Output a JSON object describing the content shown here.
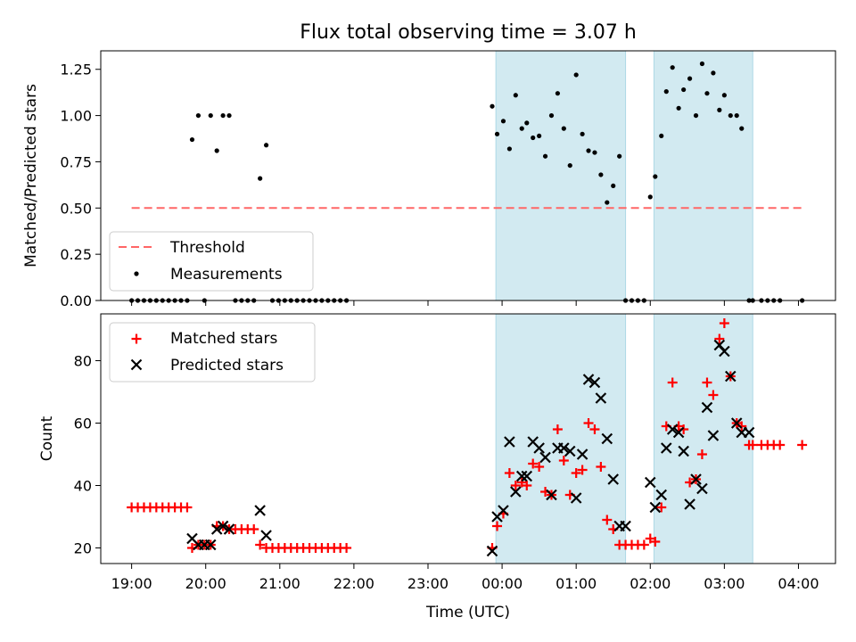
{
  "title": "Flux total observing time = 3.07 h",
  "chart_data": [
    {
      "type": "scatter",
      "title": "Flux total observing time = 3.07 h",
      "xlabel": "",
      "ylabel": "Matched/Predicted stars",
      "xlim": [
        "18:35",
        "04:30"
      ],
      "ylim": [
        0,
        1.35
      ],
      "yticks": [
        "0.00",
        "0.25",
        "0.50",
        "0.75",
        "1.00",
        "1.25"
      ],
      "xticks_labels_shown": false,
      "shaded_intervals": [
        [
          "23:55",
          "01:40"
        ],
        [
          "02:03",
          "03:23"
        ]
      ],
      "shade_color": "#add8e6",
      "legend": {
        "position": "lower-left",
        "entries": [
          "Threshold",
          "Measurements"
        ]
      },
      "threshold": {
        "name": "Threshold",
        "value": 0.5,
        "x_start": "19:00",
        "x_end": "04:05",
        "color": "#ff6666"
      },
      "series": [
        {
          "name": "Measurements",
          "color": "#000000",
          "x": [
            "19:00",
            "19:05",
            "19:10",
            "19:15",
            "19:20",
            "19:25",
            "19:30",
            "19:35",
            "19:40",
            "19:45",
            "19:49",
            "19:54",
            "19:59",
            "20:04",
            "20:09",
            "20:14",
            "20:19",
            "20:24",
            "20:29",
            "20:34",
            "20:39",
            "20:44",
            "20:49",
            "20:54",
            "20:59",
            "21:04",
            "21:09",
            "21:14",
            "21:19",
            "21:24",
            "21:29",
            "21:34",
            "21:39",
            "21:44",
            "21:49",
            "21:54",
            "23:52",
            "23:56",
            "00:01",
            "00:06",
            "00:11",
            "00:16",
            "00:20",
            "00:25",
            "00:30",
            "00:35",
            "00:40",
            "00:45",
            "00:50",
            "00:55",
            "01:00",
            "01:05",
            "01:10",
            "01:15",
            "01:20",
            "01:25",
            "01:30",
            "01:35",
            "01:40",
            "01:45",
            "01:50",
            "01:55",
            "02:00",
            "02:04",
            "02:09",
            "02:13",
            "02:18",
            "02:23",
            "02:27",
            "02:32",
            "02:37",
            "02:42",
            "02:46",
            "02:51",
            "02:56",
            "03:00",
            "03:05",
            "03:10",
            "03:14",
            "03:20",
            "03:23",
            "03:30",
            "03:35",
            "03:40",
            "03:45",
            "04:03"
          ],
          "y": [
            0,
            0,
            0,
            0,
            0,
            0,
            0,
            0,
            0,
            0,
            0.87,
            1.0,
            0,
            1.0,
            0.81,
            1.0,
            1.0,
            0,
            0,
            0,
            0,
            0.66,
            0.84,
            0,
            0,
            0,
            0,
            0,
            0,
            0,
            0,
            0,
            0,
            0,
            0,
            0,
            1.05,
            0.9,
            0.97,
            0.82,
            1.11,
            0.93,
            0.96,
            0.88,
            0.89,
            0.78,
            1.0,
            1.12,
            0.93,
            0.73,
            1.22,
            0.9,
            0.81,
            0.8,
            0.68,
            0.53,
            0.62,
            0.78,
            0,
            0,
            0,
            0,
            0.56,
            0.67,
            0.89,
            1.13,
            1.26,
            1.04,
            1.14,
            1.2,
            1.0,
            1.28,
            1.12,
            1.23,
            1.03,
            1.11,
            1.0,
            1.0,
            0.93,
            0,
            0,
            0,
            0,
            0,
            0,
            0
          ]
        }
      ]
    },
    {
      "type": "scatter",
      "xlabel": "Time (UTC)",
      "ylabel": "Count",
      "xlim": [
        "18:35",
        "04:30"
      ],
      "ylim": [
        15,
        95
      ],
      "yticks": [
        "20",
        "40",
        "60",
        "80"
      ],
      "xticks": [
        "19:00",
        "20:00",
        "21:00",
        "22:00",
        "23:00",
        "00:00",
        "01:00",
        "02:00",
        "03:00",
        "04:00"
      ],
      "shaded_intervals": [
        [
          "23:55",
          "01:40"
        ],
        [
          "02:03",
          "03:23"
        ]
      ],
      "shade_color": "#add8e6",
      "legend": {
        "position": "top-left",
        "entries": [
          "Matched stars",
          "Predicted stars"
        ]
      },
      "series": [
        {
          "name": "Matched stars",
          "marker": "plus",
          "color": "#ff0000",
          "x": [
            "19:00",
            "19:05",
            "19:10",
            "19:15",
            "19:20",
            "19:25",
            "19:30",
            "19:35",
            "19:40",
            "19:45",
            "19:49",
            "19:54",
            "19:59",
            "20:04",
            "20:09",
            "20:14",
            "20:19",
            "20:24",
            "20:29",
            "20:34",
            "20:39",
            "20:44",
            "20:49",
            "20:54",
            "20:59",
            "21:04",
            "21:09",
            "21:14",
            "21:19",
            "21:24",
            "21:29",
            "21:34",
            "21:39",
            "21:44",
            "21:49",
            "21:54",
            "23:52",
            "23:56",
            "00:01",
            "00:06",
            "00:11",
            "00:16",
            "00:20",
            "00:25",
            "00:30",
            "00:35",
            "00:40",
            "00:45",
            "00:50",
            "00:55",
            "01:00",
            "01:05",
            "01:10",
            "01:15",
            "01:20",
            "01:25",
            "01:30",
            "01:35",
            "01:40",
            "01:45",
            "01:50",
            "01:55",
            "02:00",
            "02:04",
            "02:09",
            "02:13",
            "02:18",
            "02:23",
            "02:27",
            "02:32",
            "02:37",
            "02:42",
            "02:46",
            "02:51",
            "02:56",
            "03:00",
            "03:05",
            "03:10",
            "03:14",
            "03:20",
            "03:23",
            "03:30",
            "03:35",
            "03:40",
            "03:45",
            "04:03"
          ],
          "y": [
            33,
            33,
            33,
            33,
            33,
            33,
            33,
            33,
            33,
            33,
            20,
            21,
            21,
            21,
            27,
            27,
            26,
            26,
            26,
            26,
            26,
            21,
            20,
            20,
            20,
            20,
            20,
            20,
            20,
            20,
            20,
            20,
            20,
            20,
            20,
            20,
            20,
            27,
            31,
            44,
            40,
            41,
            40,
            47,
            46,
            38,
            37,
            58,
            48,
            37,
            44,
            45,
            60,
            58,
            46,
            29,
            26,
            21,
            21,
            21,
            21,
            21,
            23,
            22,
            33,
            59,
            73,
            59,
            58,
            41,
            42,
            50,
            73,
            69,
            87,
            92,
            75,
            60,
            59,
            53,
            53,
            53,
            53,
            53,
            53,
            53
          ]
        },
        {
          "name": "Predicted stars",
          "marker": "x",
          "color": "#000000",
          "x": [
            "19:49",
            "19:54",
            "19:59",
            "20:04",
            "20:09",
            "20:14",
            "20:19",
            "20:44",
            "20:49",
            "23:52",
            "23:56",
            "00:01",
            "00:06",
            "00:11",
            "00:16",
            "00:20",
            "00:25",
            "00:30",
            "00:35",
            "00:40",
            "00:45",
            "00:50",
            "00:55",
            "01:00",
            "01:05",
            "01:10",
            "01:15",
            "01:20",
            "01:25",
            "01:30",
            "01:35",
            "01:40",
            "02:00",
            "02:04",
            "02:09",
            "02:13",
            "02:18",
            "02:23",
            "02:27",
            "02:32",
            "02:37",
            "02:42",
            "02:46",
            "02:51",
            "02:56",
            "03:00",
            "03:05",
            "03:10",
            "03:14",
            "03:20"
          ],
          "y": [
            23,
            21,
            21,
            21,
            26,
            27,
            26,
            32,
            24,
            19,
            30,
            32,
            54,
            38,
            43,
            43,
            54,
            52,
            49,
            37,
            52,
            52,
            51,
            36,
            50,
            74,
            73,
            68,
            55,
            42,
            27,
            27,
            41,
            33,
            37,
            52,
            58,
            57,
            51,
            34,
            42,
            39,
            65,
            56,
            85,
            83,
            75,
            60,
            57,
            57
          ]
        }
      ]
    }
  ]
}
